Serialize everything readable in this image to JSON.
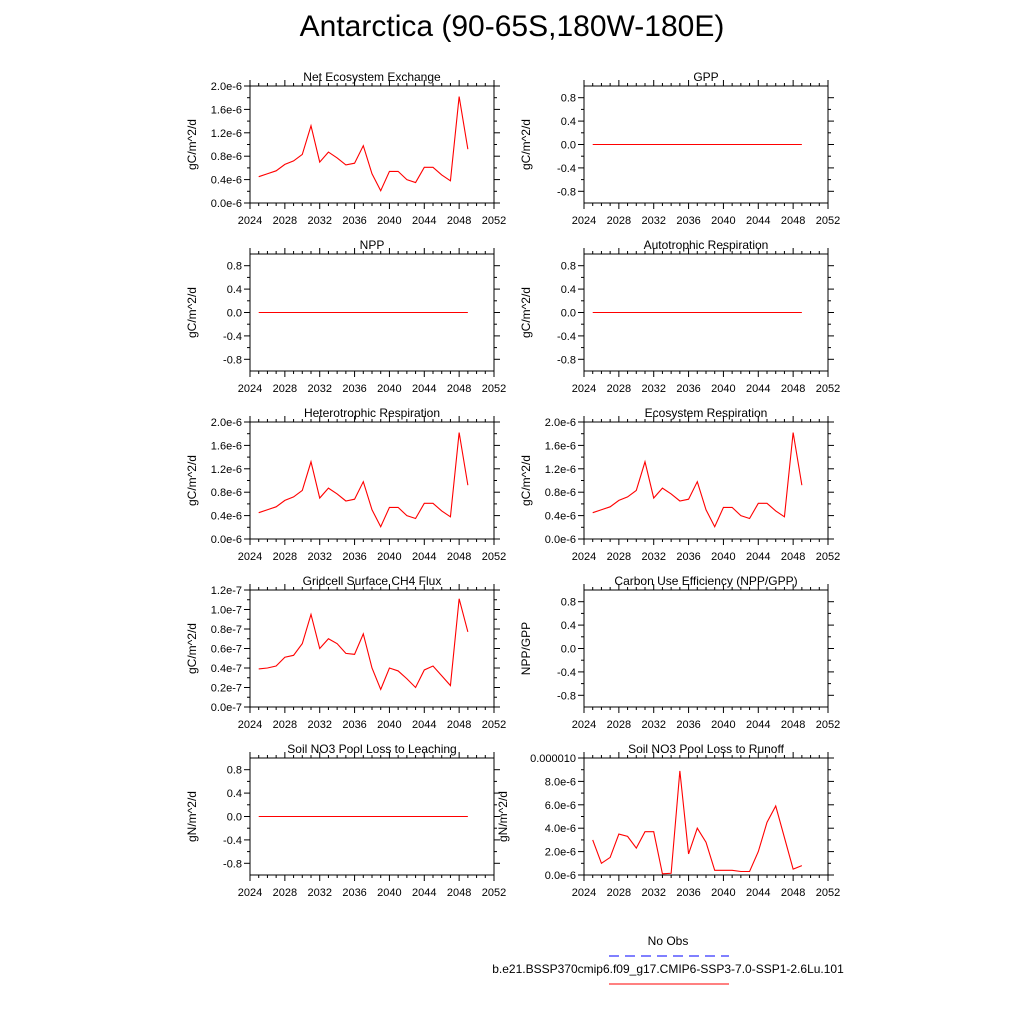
{
  "title": "Antarctica (90-65S,180W-180E)",
  "legend": [
    {
      "label": "No Obs",
      "color": "#0000ff",
      "dashed": true
    },
    {
      "label": "b.e21.BSSP370cmip6.f09_g17.CMIP6-SSP3-7.0-SSP1-2.6Lu.101",
      "color": "#ff0000",
      "dashed": false
    }
  ],
  "chart_data": [
    {
      "type": "line",
      "title": "Net Ecosystem Exchange",
      "ylabel": "gC/m^2/d",
      "xlim": [
        2024,
        2052
      ],
      "xticks": [
        2024,
        2028,
        2032,
        2036,
        2040,
        2044,
        2048,
        2052
      ],
      "ylim": [
        0,
        2e-06
      ],
      "yticks": [
        0,
        4e-07,
        8e-07,
        1.2e-06,
        1.6e-06,
        2e-06
      ],
      "ytick_labels": [
        "0.0e-6",
        "0.4e-6",
        "0.8e-6",
        "1.2e-6",
        "1.6e-6",
        "2.0e-6"
      ],
      "series": [
        {
          "color": "#ff0000",
          "x": [
            2025,
            2026,
            2027,
            2028,
            2029,
            2030,
            2031,
            2032,
            2033,
            2034,
            2035,
            2036,
            2037,
            2038,
            2039,
            2040,
            2041,
            2042,
            2043,
            2044,
            2045,
            2046,
            2047,
            2048,
            2049
          ],
          "values": [
            4.5e-07,
            5e-07,
            5.5e-07,
            6.6e-07,
            7.2e-07,
            8.3e-07,
            1.32e-06,
            7e-07,
            8.7e-07,
            7.7e-07,
            6.5e-07,
            6.8e-07,
            9.8e-07,
            5e-07,
            2.1e-07,
            5.4e-07,
            5.4e-07,
            4e-07,
            3.5e-07,
            6.1e-07,
            6.1e-07,
            4.8e-07,
            3.8e-07,
            1.82e-06,
            9.2e-07
          ]
        }
      ]
    },
    {
      "type": "line",
      "title": "GPP",
      "ylabel": "gC/m^2/d",
      "xlim": [
        2024,
        2052
      ],
      "xticks": [
        2024,
        2028,
        2032,
        2036,
        2040,
        2044,
        2048,
        2052
      ],
      "ylim": [
        -1.0,
        1.0
      ],
      "yticks": [
        -0.8,
        -0.4,
        0.0,
        0.4,
        0.8
      ],
      "ytick_labels": [
        "-0.8",
        "-0.4",
        "0.0",
        "0.4",
        "0.8"
      ],
      "series": [
        {
          "color": "#ff0000",
          "x": [
            2025,
            2049
          ],
          "values": [
            0,
            0
          ]
        }
      ]
    },
    {
      "type": "line",
      "title": "NPP",
      "ylabel": "gC/m^2/d",
      "xlim": [
        2024,
        2052
      ],
      "xticks": [
        2024,
        2028,
        2032,
        2036,
        2040,
        2044,
        2048,
        2052
      ],
      "ylim": [
        -1.0,
        1.0
      ],
      "yticks": [
        -0.8,
        -0.4,
        0.0,
        0.4,
        0.8
      ],
      "ytick_labels": [
        "-0.8",
        "-0.4",
        "0.0",
        "0.4",
        "0.8"
      ],
      "series": [
        {
          "color": "#ff0000",
          "x": [
            2025,
            2049
          ],
          "values": [
            0,
            0
          ]
        }
      ]
    },
    {
      "type": "line",
      "title": "Autotrophic Respiration",
      "ylabel": "gC/m^2/d",
      "xlim": [
        2024,
        2052
      ],
      "xticks": [
        2024,
        2028,
        2032,
        2036,
        2040,
        2044,
        2048,
        2052
      ],
      "ylim": [
        -1.0,
        1.0
      ],
      "yticks": [
        -0.8,
        -0.4,
        0.0,
        0.4,
        0.8
      ],
      "ytick_labels": [
        "-0.8",
        "-0.4",
        "0.0",
        "0.4",
        "0.8"
      ],
      "series": [
        {
          "color": "#ff0000",
          "x": [
            2025,
            2049
          ],
          "values": [
            0,
            0
          ]
        }
      ]
    },
    {
      "type": "line",
      "title": "Heterotrophic Respiration",
      "ylabel": "gC/m^2/d",
      "xlim": [
        2024,
        2052
      ],
      "xticks": [
        2024,
        2028,
        2032,
        2036,
        2040,
        2044,
        2048,
        2052
      ],
      "ylim": [
        0,
        2e-06
      ],
      "yticks": [
        0,
        4e-07,
        8e-07,
        1.2e-06,
        1.6e-06,
        2e-06
      ],
      "ytick_labels": [
        "0.0e-6",
        "0.4e-6",
        "0.8e-6",
        "1.2e-6",
        "1.6e-6",
        "2.0e-6"
      ],
      "series": [
        {
          "color": "#ff0000",
          "x": [
            2025,
            2026,
            2027,
            2028,
            2029,
            2030,
            2031,
            2032,
            2033,
            2034,
            2035,
            2036,
            2037,
            2038,
            2039,
            2040,
            2041,
            2042,
            2043,
            2044,
            2045,
            2046,
            2047,
            2048,
            2049
          ],
          "values": [
            4.5e-07,
            5e-07,
            5.5e-07,
            6.6e-07,
            7.2e-07,
            8.3e-07,
            1.32e-06,
            7e-07,
            8.7e-07,
            7.7e-07,
            6.5e-07,
            6.8e-07,
            9.8e-07,
            5e-07,
            2.1e-07,
            5.4e-07,
            5.4e-07,
            4e-07,
            3.5e-07,
            6.1e-07,
            6.1e-07,
            4.8e-07,
            3.8e-07,
            1.82e-06,
            9.2e-07
          ]
        }
      ]
    },
    {
      "type": "line",
      "title": "Ecosystem Respiration",
      "ylabel": "gC/m^2/d",
      "xlim": [
        2024,
        2052
      ],
      "xticks": [
        2024,
        2028,
        2032,
        2036,
        2040,
        2044,
        2048,
        2052
      ],
      "ylim": [
        0,
        2e-06
      ],
      "yticks": [
        0,
        4e-07,
        8e-07,
        1.2e-06,
        1.6e-06,
        2e-06
      ],
      "ytick_labels": [
        "0.0e-6",
        "0.4e-6",
        "0.8e-6",
        "1.2e-6",
        "1.6e-6",
        "2.0e-6"
      ],
      "series": [
        {
          "color": "#ff0000",
          "x": [
            2025,
            2026,
            2027,
            2028,
            2029,
            2030,
            2031,
            2032,
            2033,
            2034,
            2035,
            2036,
            2037,
            2038,
            2039,
            2040,
            2041,
            2042,
            2043,
            2044,
            2045,
            2046,
            2047,
            2048,
            2049
          ],
          "values": [
            4.5e-07,
            5e-07,
            5.5e-07,
            6.6e-07,
            7.2e-07,
            8.3e-07,
            1.32e-06,
            7e-07,
            8.7e-07,
            7.7e-07,
            6.5e-07,
            6.8e-07,
            9.8e-07,
            5e-07,
            2.1e-07,
            5.4e-07,
            5.4e-07,
            4e-07,
            3.5e-07,
            6.1e-07,
            6.1e-07,
            4.8e-07,
            3.8e-07,
            1.82e-06,
            9.2e-07
          ]
        }
      ]
    },
    {
      "type": "line",
      "title": "Gridcell Surface CH4 Flux",
      "ylabel": "gC/m^2/d",
      "xlim": [
        2024,
        2052
      ],
      "xticks": [
        2024,
        2028,
        2032,
        2036,
        2040,
        2044,
        2048,
        2052
      ],
      "ylim": [
        0,
        1.2e-07
      ],
      "yticks": [
        0,
        2e-08,
        4e-08,
        6e-08,
        8e-08,
        1e-07,
        1.2e-07
      ],
      "ytick_labels": [
        "0.0e-7",
        "0.2e-7",
        "0.4e-7",
        "0.6e-7",
        "0.8e-7",
        "1.0e-7",
        "1.2e-7"
      ],
      "series": [
        {
          "color": "#ff0000",
          "x": [
            2025,
            2026,
            2027,
            2028,
            2029,
            2030,
            2031,
            2032,
            2033,
            2034,
            2035,
            2036,
            2037,
            2038,
            2039,
            2040,
            2041,
            2042,
            2043,
            2044,
            2045,
            2046,
            2047,
            2048,
            2049
          ],
          "values": [
            3.9e-08,
            4e-08,
            4.2e-08,
            5.1e-08,
            5.3e-08,
            6.5e-08,
            9.5e-08,
            6e-08,
            7e-08,
            6.5e-08,
            5.5e-08,
            5.4e-08,
            7.5e-08,
            4e-08,
            1.8e-08,
            4e-08,
            3.7e-08,
            2.9e-08,
            2e-08,
            3.8e-08,
            4.2e-08,
            3.2e-08,
            2.2e-08,
            1.11e-07,
            7.7e-08
          ]
        }
      ]
    },
    {
      "type": "line",
      "title": "Carbon Use Efficiency (NPP/GPP)",
      "ylabel": "NPP/GPP",
      "xlim": [
        2024,
        2052
      ],
      "xticks": [
        2024,
        2028,
        2032,
        2036,
        2040,
        2044,
        2048,
        2052
      ],
      "ylim": [
        -1.0,
        1.0
      ],
      "yticks": [
        -0.8,
        -0.4,
        0.0,
        0.4,
        0.8
      ],
      "ytick_labels": [
        "-0.8",
        "-0.4",
        "0.0",
        "0.4",
        "0.8"
      ],
      "series": []
    },
    {
      "type": "line",
      "title": "Soil NO3 Pool Loss to Leaching",
      "ylabel": "gN/m^2/d",
      "xlim": [
        2024,
        2052
      ],
      "xticks": [
        2024,
        2028,
        2032,
        2036,
        2040,
        2044,
        2048,
        2052
      ],
      "ylim": [
        -1.0,
        1.0
      ],
      "yticks": [
        -0.8,
        -0.4,
        0.0,
        0.4,
        0.8
      ],
      "ytick_labels": [
        "-0.8",
        "-0.4",
        "0.0",
        "0.4",
        "0.8"
      ],
      "series": [
        {
          "color": "#ff0000",
          "x": [
            2025,
            2049
          ],
          "values": [
            0,
            0
          ]
        }
      ]
    },
    {
      "type": "line",
      "title": "Soil NO3 Pool Loss to Runoff",
      "ylabel": "gN/m^2/d",
      "xlim": [
        2024,
        2052
      ],
      "xticks": [
        2024,
        2028,
        2032,
        2036,
        2040,
        2044,
        2048,
        2052
      ],
      "ylim": [
        0,
        1e-05
      ],
      "yticks": [
        0,
        2e-06,
        4e-06,
        6e-06,
        8e-06,
        1e-05
      ],
      "ytick_labels": [
        "0.0e-6",
        "2.0e-6",
        "4.0e-6",
        "6.0e-6",
        "8.0e-6",
        "0.000010"
      ],
      "series": [
        {
          "color": "#ff0000",
          "x": [
            2025,
            2026,
            2027,
            2028,
            2029,
            2030,
            2031,
            2032,
            2033,
            2034,
            2035,
            2036,
            2037,
            2038,
            2039,
            2040,
            2041,
            2042,
            2043,
            2044,
            2045,
            2046,
            2047,
            2048,
            2049
          ],
          "values": [
            3e-06,
            1e-06,
            1.5e-06,
            3.5e-06,
            3.3e-06,
            2.3e-06,
            3.7e-06,
            3.7e-06,
            1e-07,
            1.5e-07,
            8.9e-06,
            1.8e-06,
            4e-06,
            2.8e-06,
            4e-07,
            4e-07,
            4e-07,
            3e-07,
            3e-07,
            2e-06,
            4.5e-06,
            5.9e-06,
            3.2e-06,
            5e-07,
            8e-07
          ]
        }
      ]
    }
  ]
}
